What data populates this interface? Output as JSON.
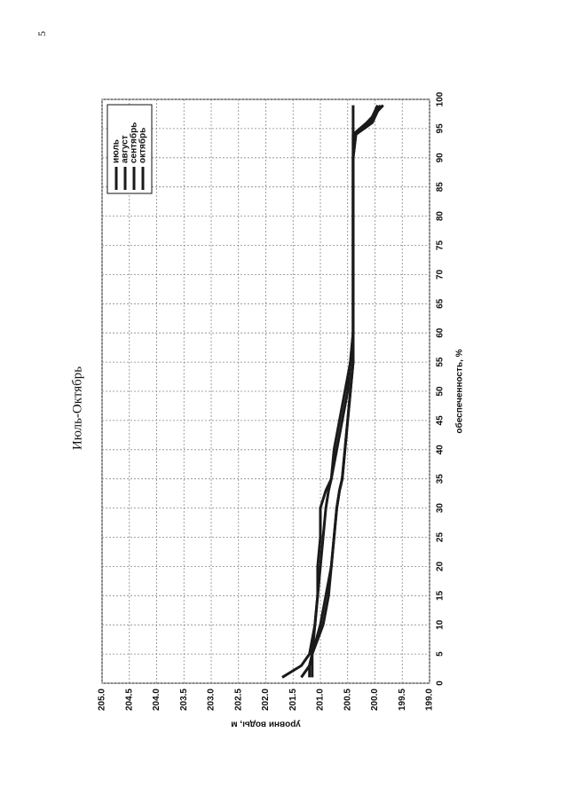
{
  "page_number": "5",
  "chart_data": {
    "type": "line",
    "title": "Июль-Октябрь",
    "x_label": "обеспеченность, %",
    "y_label": "уровни воды, м",
    "x": [
      1,
      3,
      5,
      10,
      15,
      20,
      25,
      30,
      33,
      35,
      40,
      45,
      50,
      55,
      60,
      70,
      80,
      90,
      94,
      96,
      99
    ],
    "series": [
      {
        "name": "июль",
        "color": "#1a1a1a",
        "values": [
          201.7,
          201.35,
          201.2,
          201.1,
          201.05,
          201.05,
          201.0,
          201.0,
          200.9,
          200.8,
          200.7,
          200.6,
          200.5,
          200.45,
          200.4,
          200.4,
          200.4,
          200.4,
          200.4,
          200.4,
          200.4
        ]
      },
      {
        "name": "август",
        "color": "#1a1a1a",
        "values": [
          201.35,
          201.2,
          201.15,
          201.1,
          201.05,
          201.0,
          200.95,
          200.9,
          200.85,
          200.8,
          200.75,
          200.65,
          200.55,
          200.45,
          200.4,
          200.4,
          200.4,
          200.4,
          200.35,
          200.1,
          199.95
        ]
      },
      {
        "name": "сентябрь",
        "color": "#1a1a1a",
        "values": [
          201.15,
          201.15,
          201.15,
          201.0,
          200.9,
          200.8,
          200.75,
          200.7,
          200.65,
          200.6,
          200.55,
          200.5,
          200.45,
          200.4,
          200.4,
          200.4,
          200.4,
          200.4,
          200.35,
          200.05,
          199.9
        ]
      },
      {
        "name": "октябрь",
        "color": "#1a1a1a",
        "values": [
          201.2,
          201.2,
          201.15,
          200.95,
          200.85,
          200.8,
          200.75,
          200.7,
          200.65,
          200.6,
          200.55,
          200.5,
          200.45,
          200.4,
          200.4,
          200.4,
          200.4,
          200.4,
          200.4,
          200.15,
          199.85
        ]
      }
    ],
    "xlim": [
      0,
      100
    ],
    "xticks": [
      0,
      5,
      10,
      15,
      20,
      25,
      30,
      35,
      40,
      45,
      50,
      55,
      60,
      65,
      70,
      75,
      80,
      85,
      90,
      95,
      100
    ],
    "ylim": [
      199,
      205
    ],
    "yticks": [
      {
        "value": 199,
        "label": "199.0"
      },
      199.5,
      {
        "value": 200,
        "label": "200.0"
      },
      200.5,
      {
        "value": 201,
        "label": "201.0"
      },
      201.5,
      {
        "value": 202,
        "label": "202.0"
      },
      202.5,
      {
        "value": 203,
        "label": "203.0"
      },
      203.5,
      {
        "value": 204,
        "label": "204.0"
      },
      204.5,
      {
        "value": 205,
        "label": "205.0"
      }
    ],
    "grid": true,
    "legend": "upper right"
  }
}
